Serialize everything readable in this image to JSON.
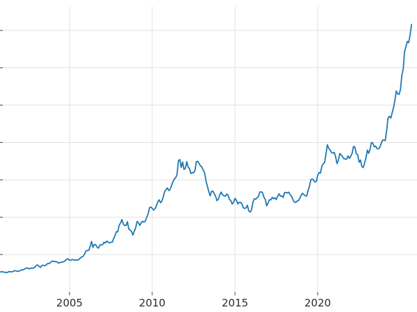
{
  "page": {
    "background_color": "#ffffff"
  },
  "chart_data": {
    "type": "line",
    "title": "",
    "subtitle": "",
    "xlabel": "",
    "ylabel": "",
    "grid": true,
    "legend": "none",
    "xlim": [
      2000.8,
      2026.0
    ],
    "ylim": [
      0,
      3824
    ],
    "x_start": 2000.75,
    "x_step_years": 0.0833333,
    "xticks": [
      {
        "value": 2005,
        "label": "2005"
      },
      {
        "value": 2010,
        "label": "2010"
      },
      {
        "value": 2015,
        "label": "2015"
      },
      {
        "value": 2020,
        "label": "2020"
      }
    ],
    "ygridline_values": [
      500,
      1000,
      1500,
      2000,
      2500,
      3000,
      3500
    ],
    "line_color": "#1f77b4",
    "grid_color": "#e1e1e1",
    "tick_color": "#444444",
    "tick_label_color": "#2b2b2b",
    "series": [
      {
        "color": "#1f77b4",
        "values": [
          270,
          266,
          272,
          265,
          262,
          263,
          260,
          272,
          270,
          268,
          272,
          284,
          283,
          276,
          276,
          281,
          295,
          294,
          302,
          314,
          321,
          313,
          310,
          319,
          317,
          319,
          333,
          357,
          359,
          340,
          328,
          355,
          356,
          351,
          360,
          379,
          379,
          389,
          407,
          414,
          405,
          406,
          403,
          384,
          392,
          398,
          400,
          405,
          420,
          439,
          442,
          424,
          423,
          434,
          429,
          422,
          431,
          424,
          437,
          456,
          470,
          477,
          510,
          550,
          555,
          557,
          611,
          676,
          596,
          634,
          632,
          599,
          586,
          627,
          629,
          631,
          665,
          655,
          680,
          667,
          655,
          665,
          665,
          713,
          755,
          806,
          803,
          890,
          922,
          968,
          910,
          889,
          889,
          940,
          839,
          829,
          807,
          761,
          816,
          858,
          943,
          924,
          890,
          929,
          946,
          934,
          949,
          997,
          1043,
          1127,
          1135,
          1118,
          1095,
          1113,
          1149,
          1205,
          1233,
          1193,
          1216,
          1271,
          1342,
          1370,
          1391,
          1356,
          1373,
          1424,
          1474,
          1511,
          1529,
          1573,
          1756,
          1772,
          1666,
          1739,
          1640,
          1654,
          1743,
          1674,
          1650,
          1585,
          1597,
          1594,
          1626,
          1744,
          1747,
          1722,
          1685,
          1671,
          1627,
          1593,
          1487,
          1414,
          1343,
          1286,
          1347,
          1348,
          1316,
          1276,
          1221,
          1244,
          1301,
          1336,
          1298,
          1288,
          1279,
          1311,
          1295,
          1237,
          1222,
          1176,
          1200,
          1251,
          1227,
          1179,
          1197,
          1199,
          1181,
          1128,
          1117,
          1125,
          1159,
          1086,
          1068,
          1097,
          1200,
          1246,
          1242,
          1260,
          1276,
          1337,
          1340,
          1327,
          1266,
          1238,
          1152,
          1192,
          1234,
          1231,
          1266,
          1246,
          1260,
          1236,
          1283,
          1314,
          1280,
          1282,
          1264,
          1331,
          1330,
          1325,
          1335,
          1303,
          1281,
          1238,
          1201,
          1198,
          1215,
          1221,
          1250,
          1292,
          1320,
          1301,
          1286,
          1284,
          1359,
          1413,
          1500,
          1511,
          1495,
          1471,
          1479,
          1561,
          1597,
          1591,
          1683,
          1716,
          1732,
          1843,
          1969,
          1922,
          1900,
          1866,
          1858,
          1867,
          1808,
          1718,
          1762,
          1853,
          1835,
          1807,
          1784,
          1777,
          1777,
          1820,
          1787,
          1816,
          1856,
          1948,
          1937,
          1848,
          1836,
          1736,
          1765,
          1681,
          1664,
          1725,
          1797,
          1898,
          1855,
          1913,
          2000,
          1992,
          1943,
          1951,
          1918,
          1916,
          1932,
          1984,
          2033,
          2034,
          2025,
          2158,
          2330,
          2351,
          2326,
          2398,
          2470,
          2568,
          2690,
          2651,
          2643,
          2708,
          2897,
          2983,
          3218,
          3281,
          3353,
          3338,
          3440,
          3580
        ]
      }
    ]
  }
}
